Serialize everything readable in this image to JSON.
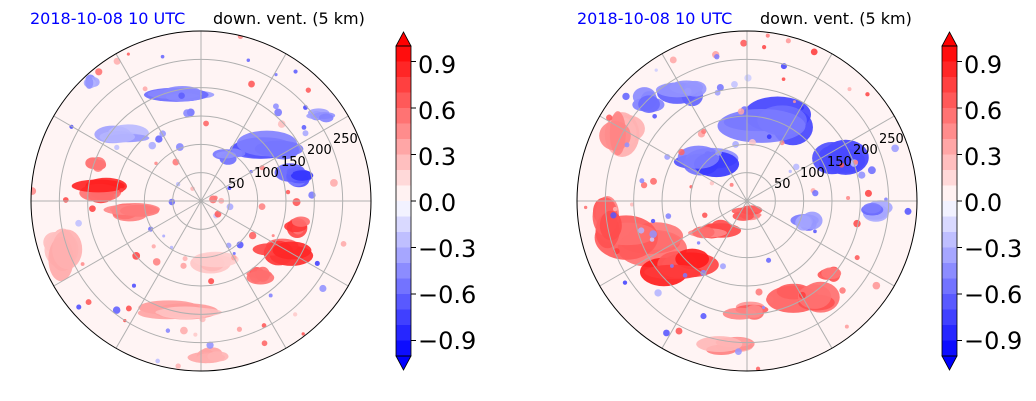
{
  "chart_data": [
    {
      "type": "heatmap",
      "projection": "polar",
      "date_label": "2018-10-08 10 UTC",
      "title": "down. vent. (5 km)",
      "radial_ticks": [
        "50",
        "100",
        "150",
        "200",
        "250"
      ],
      "radial_tick_values": [
        50,
        100,
        150,
        200,
        250
      ],
      "r_max": 300,
      "colorbar": {
        "vmin": -1.0,
        "vmax": 1.0,
        "ticks": [
          0.9,
          0.6,
          0.3,
          0.0,
          -0.3,
          -0.6,
          -0.9
        ],
        "tick_labels": [
          "0.9",
          "0.6",
          "0.3",
          "0.0",
          "−0.3",
          "−0.6",
          "−0.9"
        ],
        "colormap": "bwr",
        "extend": "both"
      },
      "colors": {
        "positive": "#ff0000",
        "negative": "#0000ff",
        "zero": "#ffffff"
      }
    },
    {
      "type": "heatmap",
      "projection": "polar",
      "date_label": "2018-10-08 10 UTC",
      "title": "down. vent. (5 km)",
      "radial_ticks": [
        "50",
        "100",
        "150",
        "200",
        "250"
      ],
      "radial_tick_values": [
        50,
        100,
        150,
        200,
        250
      ],
      "r_max": 300,
      "colorbar": {
        "vmin": -1.0,
        "vmax": 1.0,
        "ticks": [
          0.9,
          0.6,
          0.3,
          0.0,
          -0.3,
          -0.6,
          -0.9
        ],
        "tick_labels": [
          "0.9",
          "0.6",
          "0.3",
          "0.0",
          "−0.3",
          "−0.6",
          "−0.9"
        ],
        "colormap": "bwr",
        "extend": "both"
      },
      "colors": {
        "positive": "#ff0000",
        "negative": "#0000ff",
        "zero": "#ffffff"
      }
    }
  ]
}
